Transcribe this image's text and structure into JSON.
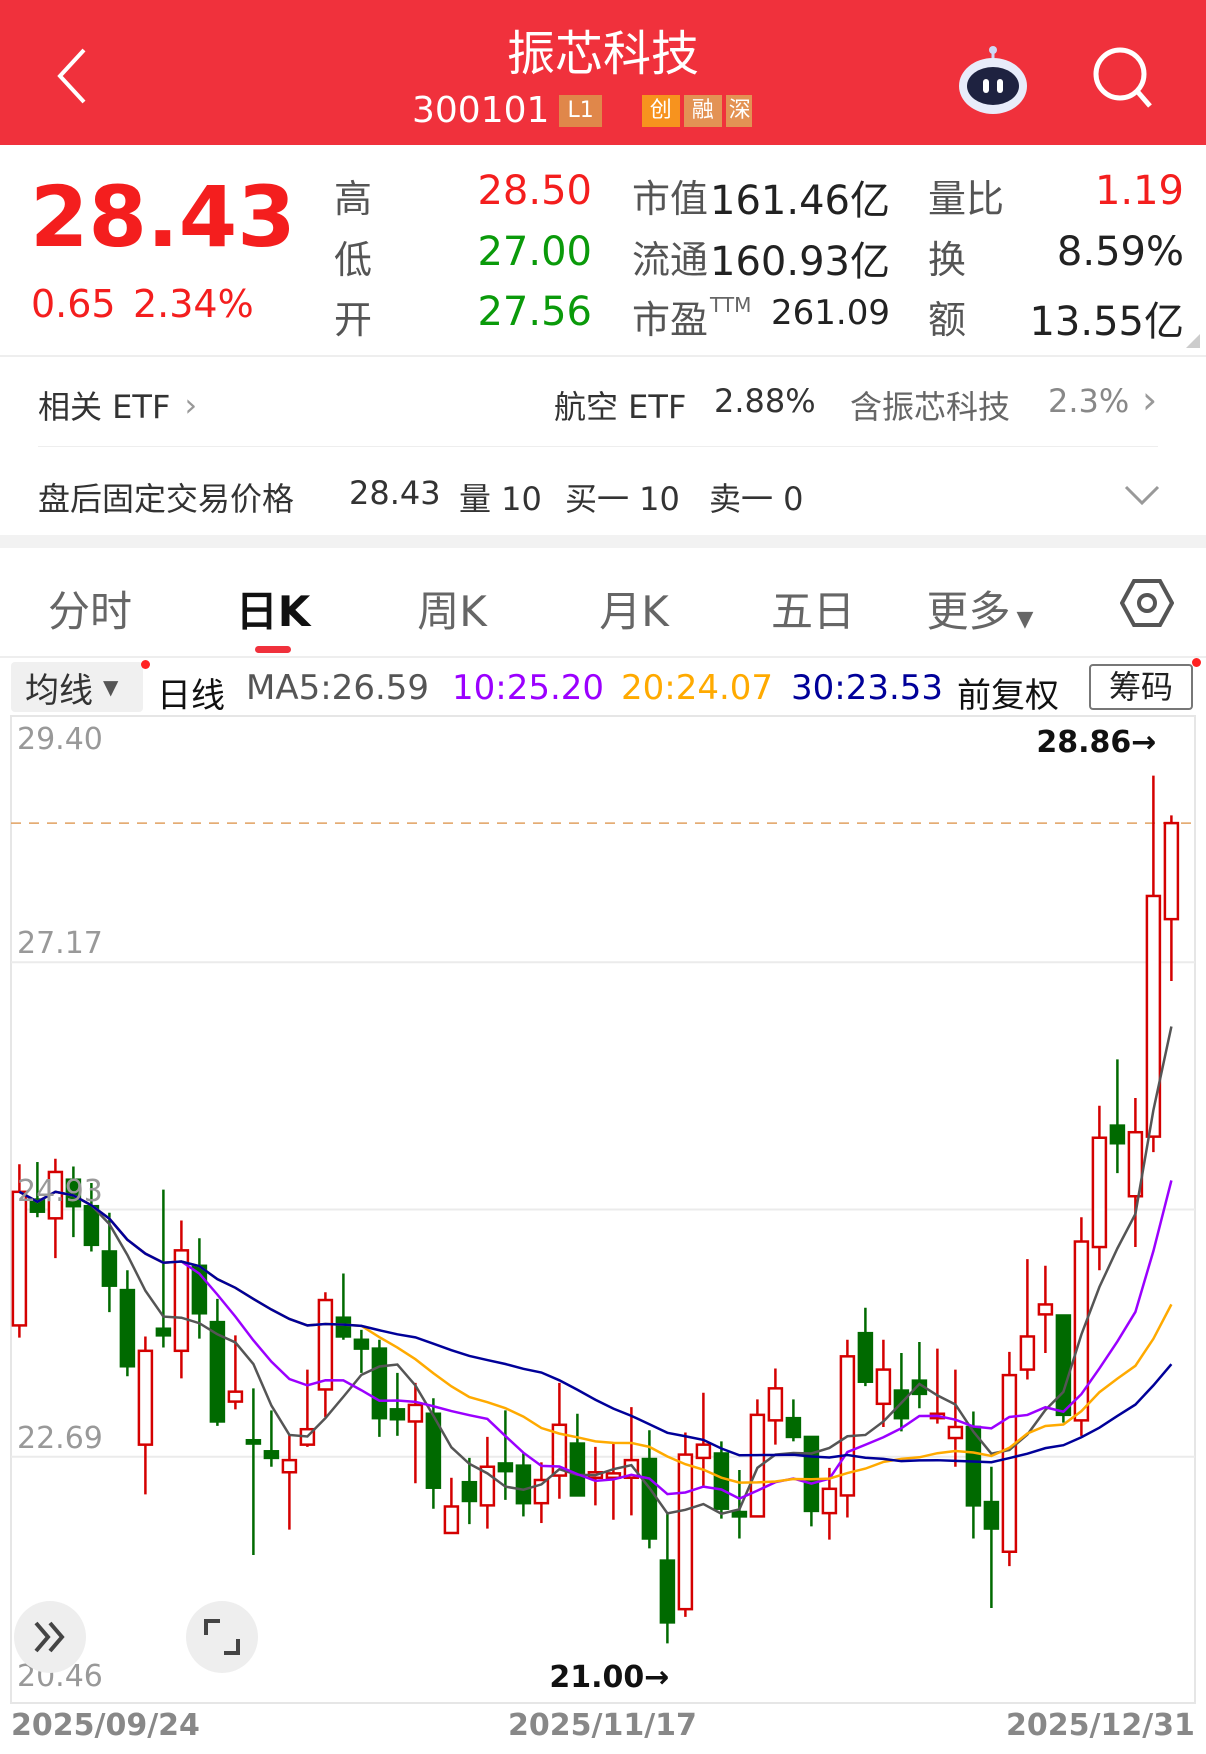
{
  "header": {
    "title": "振芯科技",
    "code": "300101",
    "tags": [
      "L1",
      "创",
      "融",
      "深"
    ],
    "back_icon": "chevron-left-icon",
    "assistant_icon": "robot-icon",
    "search_icon": "search-icon"
  },
  "quote": {
    "price": "28.43",
    "change": "0.65",
    "change_pct": "2.34%",
    "stats": [
      {
        "label": "高",
        "value": "28.50",
        "color": "red"
      },
      {
        "label": "低",
        "value": "27.00",
        "color": "green"
      },
      {
        "label": "开",
        "value": "27.56",
        "color": "green"
      }
    ],
    "stats2": [
      {
        "label": "市值",
        "value": "161.46亿"
      },
      {
        "label": "流通",
        "value": "160.93亿"
      },
      {
        "label": "市盈",
        "sup": "TTM",
        "value": "261.09"
      }
    ],
    "stats3": [
      {
        "label": "量比",
        "value": "1.19",
        "color": "red"
      },
      {
        "label": "换",
        "value": "8.59%"
      },
      {
        "label": "额",
        "value": "13.55亿"
      }
    ]
  },
  "etf": {
    "label": "相关 ETF",
    "name": "航空 ETF",
    "pct": "2.88%",
    "contains": "含振芯科技",
    "weight": "2.3%"
  },
  "after_hours": {
    "label": "盘后固定交易价格",
    "price": "28.43",
    "volume": "量 10",
    "bid": "买一 10",
    "ask": "卖一 0"
  },
  "tabs": [
    {
      "label": "分时"
    },
    {
      "label": "日K",
      "active": true
    },
    {
      "label": "周K"
    },
    {
      "label": "月K"
    },
    {
      "label": "五日"
    },
    {
      "label": "更多"
    }
  ],
  "ma_bar": {
    "dropdown": "均线",
    "period": "日线",
    "ma5": "MA5:26.59",
    "ma10": "10:25.20",
    "ma20": "20:24.07",
    "ma30": "30:23.53",
    "adjust": "前复权",
    "chips": "筹码"
  },
  "colors": {
    "up": "#D40000",
    "down": "#006A00",
    "ma5": "#555555",
    "ma10": "#9B00FF",
    "ma20": "#FFAA00",
    "ma30": "#000099",
    "header": "#F0313C"
  },
  "chart_data": {
    "type": "candlestick",
    "y_ticks": [
      "29.40",
      "27.17",
      "24.93",
      "22.69",
      "20.46"
    ],
    "ylim": [
      20.46,
      29.4
    ],
    "x_labels": [
      "2025/09/24",
      "2025/11/17",
      "2025/12/31"
    ],
    "max_label": "28.86→",
    "min_label": "21.00→",
    "max": 28.86,
    "min": 21.0,
    "last_price_line": 28.43,
    "candles": [
      [
        23.88,
        25.34,
        23.77,
        25.09
      ],
      [
        25.02,
        25.36,
        24.86,
        24.91
      ],
      [
        24.85,
        25.39,
        24.49,
        25.27
      ],
      [
        25.2,
        25.32,
        24.68,
        24.96
      ],
      [
        24.96,
        25.17,
        24.55,
        24.61
      ],
      [
        24.55,
        24.9,
        24.0,
        24.24
      ],
      [
        24.2,
        24.38,
        23.42,
        23.51
      ],
      [
        22.8,
        23.78,
        22.35,
        23.65
      ],
      [
        23.85,
        25.11,
        23.68,
        23.79
      ],
      [
        23.65,
        24.83,
        23.4,
        24.56
      ],
      [
        24.42,
        24.67,
        23.76,
        23.99
      ],
      [
        23.91,
        24.12,
        22.97,
        23.01
      ],
      [
        23.19,
        23.79,
        23.12,
        23.28
      ],
      [
        22.84,
        23.31,
        21.8,
        22.81
      ],
      [
        22.74,
        23.11,
        22.6,
        22.68
      ],
      [
        22.55,
        22.89,
        22.03,
        22.66
      ],
      [
        22.8,
        23.48,
        22.78,
        22.94
      ],
      [
        23.3,
        24.18,
        23.05,
        24.11
      ],
      [
        23.95,
        24.35,
        23.75,
        23.78
      ],
      [
        23.75,
        23.84,
        23.45,
        23.67
      ],
      [
        23.67,
        23.75,
        22.87,
        23.04
      ],
      [
        23.12,
        23.45,
        22.88,
        23.03
      ],
      [
        23.01,
        23.36,
        22.45,
        23.16
      ],
      [
        23.08,
        23.22,
        22.22,
        22.41
      ],
      [
        22.0,
        22.5,
        22.0,
        22.24
      ],
      [
        22.46,
        22.68,
        22.08,
        22.29
      ],
      [
        22.25,
        22.87,
        22.04,
        22.6
      ],
      [
        22.63,
        23.11,
        22.3,
        22.56
      ],
      [
        22.61,
        22.72,
        22.15,
        22.27
      ],
      [
        22.27,
        22.64,
        22.09,
        22.48
      ],
      [
        22.52,
        23.36,
        22.31,
        22.98
      ],
      [
        22.81,
        23.08,
        22.33,
        22.34
      ],
      [
        22.5,
        22.78,
        22.25,
        22.55
      ],
      [
        22.5,
        22.81,
        22.12,
        22.54
      ],
      [
        22.5,
        23.14,
        22.16,
        22.66
      ],
      [
        22.67,
        22.93,
        21.86,
        21.95
      ],
      [
        21.75,
        22.18,
        21.0,
        21.19
      ],
      [
        21.31,
        22.91,
        21.24,
        22.71
      ],
      [
        22.68,
        23.27,
        22.42,
        22.8
      ],
      [
        22.72,
        22.83,
        22.13,
        22.22
      ],
      [
        22.19,
        22.57,
        21.95,
        22.15
      ],
      [
        22.15,
        23.21,
        22.15,
        23.07
      ],
      [
        23.02,
        23.49,
        22.8,
        23.31
      ],
      [
        23.04,
        23.21,
        22.83,
        22.87
      ],
      [
        22.87,
        22.87,
        22.06,
        22.2
      ],
      [
        22.18,
        22.59,
        21.94,
        22.4
      ],
      [
        22.34,
        23.75,
        22.14,
        23.6
      ],
      [
        23.81,
        24.04,
        23.33,
        23.37
      ],
      [
        23.17,
        23.75,
        22.96,
        23.48
      ],
      [
        23.29,
        23.63,
        22.92,
        23.04
      ],
      [
        23.38,
        23.73,
        23.13,
        23.26
      ],
      [
        23.04,
        23.67,
        22.99,
        23.08
      ],
      [
        22.86,
        23.48,
        22.6,
        22.96
      ],
      [
        22.96,
        23.1,
        21.95,
        22.25
      ],
      [
        22.28,
        22.6,
        21.32,
        22.04
      ],
      [
        21.83,
        23.64,
        21.7,
        23.43
      ],
      [
        23.48,
        24.48,
        23.39,
        23.78
      ],
      [
        23.98,
        24.42,
        23.63,
        24.07
      ],
      [
        23.97,
        23.97,
        23.0,
        23.07
      ],
      [
        23.02,
        24.86,
        22.88,
        24.64
      ],
      [
        24.59,
        25.87,
        24.38,
        25.58
      ],
      [
        25.69,
        26.29,
        25.26,
        25.53
      ],
      [
        25.05,
        25.94,
        24.59,
        25.63
      ],
      [
        25.59,
        28.86,
        25.45,
        27.77
      ],
      [
        27.56,
        28.5,
        27.0,
        28.43
      ]
    ],
    "ma_series": [
      "MA5",
      "MA10",
      "MA20",
      "MA30"
    ]
  }
}
